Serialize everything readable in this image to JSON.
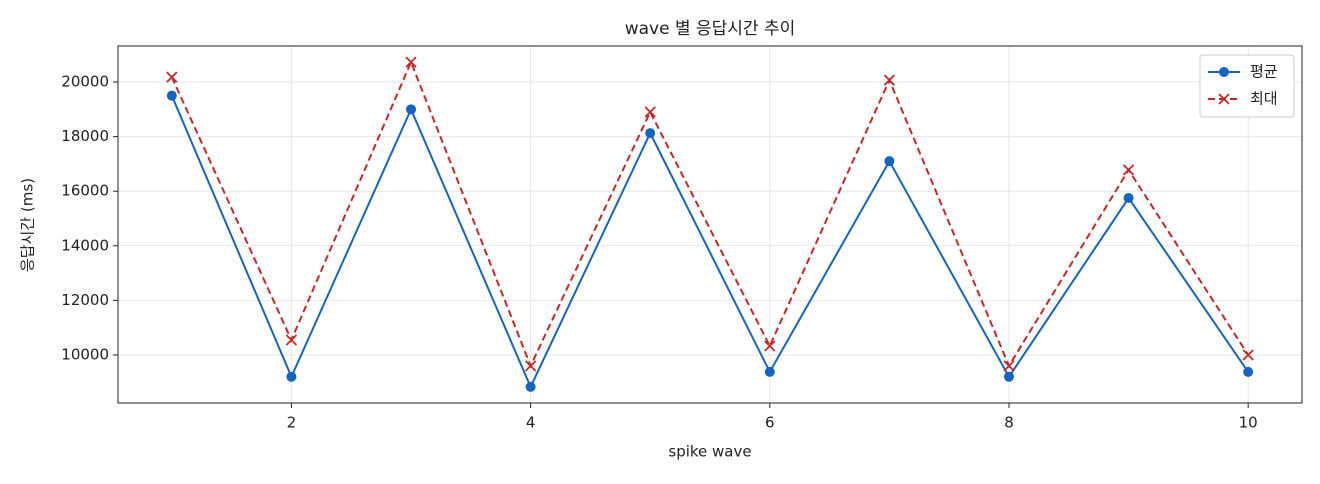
{
  "chart_data": {
    "type": "line",
    "title": "wave 별 응답시간 추이",
    "x_label": "spike wave",
    "y_label": "응답시간 (ms)",
    "x": [
      1,
      2,
      3,
      4,
      5,
      6,
      7,
      8,
      9,
      10
    ],
    "series": [
      {
        "name": "평균",
        "color": "#1565c0",
        "linestyle": "solid",
        "marker": "circle",
        "values": [
          19500,
          9200,
          19000,
          8830,
          18130,
          9380,
          17100,
          9200,
          15750,
          9380
        ]
      },
      {
        "name": "최대",
        "color": "#c62828",
        "linestyle": "dashed",
        "marker": "x",
        "values": [
          20180,
          10550,
          20730,
          9600,
          18900,
          10330,
          20070,
          9600,
          16780,
          10000
        ]
      }
    ],
    "xlim": [
      0.55,
      10.45
    ],
    "xticks": [
      2,
      4,
      6,
      8,
      10
    ],
    "ylim": [
      8240,
      21320
    ],
    "yticks": [
      10000,
      12000,
      14000,
      16000,
      18000,
      20000
    ],
    "grid": true,
    "legend": "upper right"
  }
}
